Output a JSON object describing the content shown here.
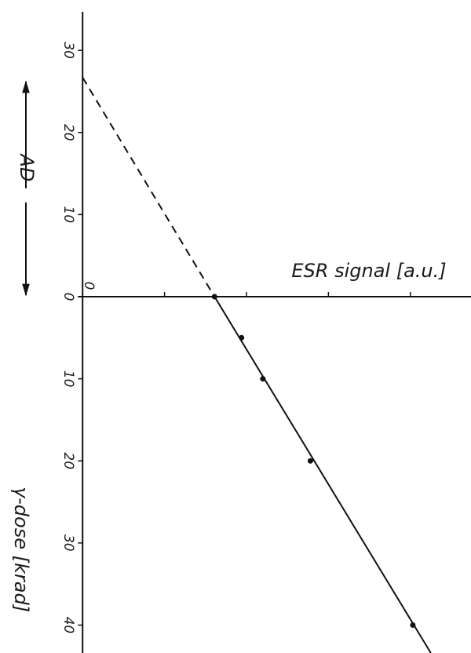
{
  "chart_data": {
    "type": "scatter",
    "x_label": "ESR signal [a.u.]",
    "y_label": "γ-dose [krad]",
    "additive_label": "AD",
    "x": [
      1.61,
      1.94,
      2.2,
      2.78,
      4.03
    ],
    "values": [
      0,
      5,
      10,
      20,
      40
    ],
    "color": "#111111",
    "xlim": [
      -0.05,
      4.74
    ],
    "ylim": [
      -34.7,
      43.4
    ],
    "xticks": [
      0
    ],
    "xticks_minor": [
      1,
      2,
      3,
      4
    ],
    "yticks": [
      0,
      10,
      20,
      30,
      40
    ],
    "ad_ticks": [
      {
        "value": -30,
        "label": "30"
      },
      {
        "value": -20,
        "label": "20"
      },
      {
        "value": -10,
        "label": "10"
      },
      {
        "value": 0,
        "label": "0"
      }
    ],
    "fit": {
      "extrapolated": {
        "x": [
          0,
          1.61
        ],
        "y": [
          -26.7,
          0
        ],
        "dashed": true
      },
      "measured": {
        "x": [
          1.61,
          4.25
        ],
        "y": [
          0,
          43.4
        ],
        "dashed": false
      }
    }
  }
}
